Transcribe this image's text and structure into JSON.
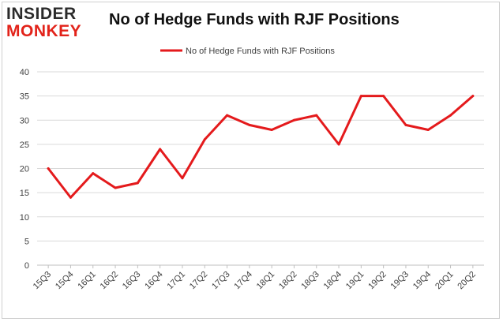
{
  "brand": {
    "logo_top": "INSIDER",
    "logo_bottom": "MONKEY",
    "brand_color": "#e2231a"
  },
  "chart_data": {
    "type": "line",
    "title": "No of Hedge Funds with RJF Positions",
    "xlabel": "",
    "ylabel": "",
    "categories": [
      "15Q3",
      "15Q4",
      "16Q1",
      "16Q2",
      "16Q3",
      "16Q4",
      "17Q1",
      "17Q2",
      "17Q3",
      "17Q4",
      "18Q1",
      "18Q2",
      "18Q3",
      "18Q4",
      "19Q1",
      "19Q2",
      "19Q3",
      "19Q4",
      "20Q1",
      "20Q2"
    ],
    "series": [
      {
        "name": "No of Hedge Funds with RJF Positions",
        "color": "#e41a1c",
        "values": [
          20,
          14,
          19,
          16,
          17,
          24,
          18,
          26,
          31,
          29,
          28,
          30,
          31,
          25,
          35,
          35,
          29,
          28,
          31,
          35
        ]
      }
    ],
    "ylim": [
      0,
      40
    ],
    "yticks": [
      0,
      5,
      10,
      15,
      20,
      25,
      30,
      35,
      40
    ],
    "grid": true,
    "legend_position": "top-center"
  }
}
